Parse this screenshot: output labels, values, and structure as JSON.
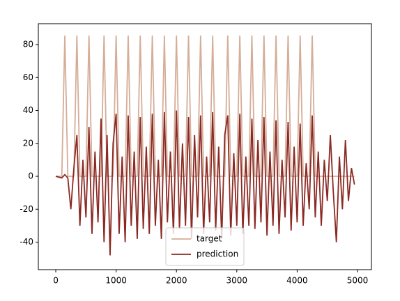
{
  "chart_data": {
    "type": "line",
    "x": [
      0,
      50,
      100,
      150,
      200,
      250,
      300,
      350,
      400,
      450,
      500,
      550,
      600,
      650,
      700,
      750,
      800,
      850,
      900,
      950,
      1000,
      1050,
      1100,
      1150,
      1200,
      1250,
      1300,
      1350,
      1400,
      1450,
      1500,
      1550,
      1600,
      1650,
      1700,
      1750,
      1800,
      1850,
      1900,
      1950,
      2000,
      2050,
      2100,
      2150,
      2200,
      2250,
      2300,
      2350,
      2400,
      2450,
      2500,
      2550,
      2600,
      2650,
      2700,
      2750,
      2800,
      2850,
      2900,
      2950,
      3000,
      3050,
      3100,
      3150,
      3200,
      3250,
      3300,
      3350,
      3400,
      3450,
      3500,
      3550,
      3600,
      3650,
      3700,
      3750,
      3800,
      3850,
      3900,
      3950,
      4000,
      4050,
      4100,
      4150,
      4200,
      4250,
      4300,
      4350,
      4400,
      4450,
      4500,
      4550,
      4600,
      4650,
      4700,
      4750,
      4800,
      4850,
      4900,
      4950
    ],
    "series": [
      {
        "name": "target",
        "color": "#d5ad98",
        "values": [
          0,
          0,
          0,
          85.5,
          0,
          0,
          0,
          85.5,
          0,
          0,
          0,
          85.5,
          0,
          0,
          0,
          0,
          85.5,
          0,
          0,
          0,
          85.5,
          0,
          0,
          0,
          85.5,
          0,
          0,
          0,
          85.5,
          0,
          0,
          0,
          85.5,
          0,
          0,
          0,
          85.5,
          0,
          0,
          0,
          85.5,
          0,
          0,
          0,
          85.5,
          0,
          0,
          0,
          85.5,
          0,
          0,
          0,
          85.5,
          0,
          0,
          0,
          0,
          85.5,
          0,
          0,
          0,
          85.5,
          0,
          0,
          0,
          85.5,
          0,
          0,
          0,
          85.5,
          0,
          0,
          0,
          85.5,
          0,
          0,
          0,
          85.5,
          0,
          0,
          0,
          85.5,
          0,
          0,
          0,
          85.5,
          0,
          0,
          0,
          0,
          0,
          0,
          0,
          0,
          0,
          0,
          0,
          0,
          0,
          0
        ]
      },
      {
        "name": "prediction",
        "color": "#8b2a24",
        "values": [
          0,
          -0.5,
          -1,
          1,
          -1,
          -20,
          5,
          25,
          -30,
          10,
          -25,
          30,
          -35,
          15,
          -28,
          35,
          -40,
          25,
          -48,
          20,
          38,
          -35,
          12,
          -40,
          37,
          -30,
          15,
          -38,
          36,
          -32,
          18,
          -35,
          38,
          -30,
          10,
          -38,
          39,
          -28,
          15,
          -35,
          40,
          -32,
          20,
          -30,
          36,
          -38,
          25,
          -25,
          37,
          -35,
          12,
          -28,
          39,
          -33,
          18,
          -38,
          25,
          37,
          -36,
          14,
          -30,
          38,
          -35,
          12,
          -30,
          35,
          -32,
          22,
          -28,
          36,
          -36,
          15,
          -30,
          34,
          -35,
          10,
          -25,
          33,
          -33,
          18,
          -28,
          32,
          -30,
          8,
          -20,
          37,
          -25,
          15,
          -30,
          10,
          -15,
          25,
          -10,
          -40,
          12,
          -20,
          22,
          -15,
          5,
          -5
        ]
      }
    ],
    "xlim": [
      -289,
      5231
    ],
    "ylim": [
      -56.7,
      92.7
    ],
    "xticks": [
      0,
      1000,
      2000,
      3000,
      4000,
      5000
    ],
    "yticks": [
      -40,
      -20,
      0,
      20,
      40,
      60,
      80
    ],
    "legend": "lower center"
  }
}
